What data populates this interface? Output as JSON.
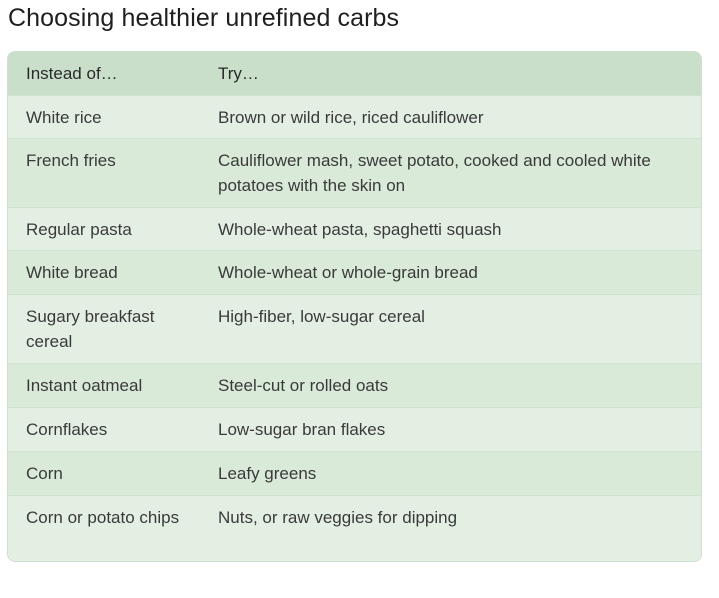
{
  "title": "Choosing healthier unrefined carbs",
  "table": {
    "headers": [
      "Instead of…",
      "Try…"
    ],
    "rows": [
      {
        "instead": "White rice",
        "try": "Brown or wild rice, riced cauliflower"
      },
      {
        "instead": "French fries",
        "try": "Cauliflower mash, sweet potato, cooked and cooled white potatoes with the skin on"
      },
      {
        "instead": "Regular pasta",
        "try": "Whole-wheat pasta, spaghetti squash"
      },
      {
        "instead": "White bread",
        "try": "Whole-wheat or whole-grain bread"
      },
      {
        "instead": "Sugary breakfast cereal",
        "try": "High-fiber, low-sugar cereal"
      },
      {
        "instead": "Instant oatmeal",
        "try": "Steel-cut or rolled oats"
      },
      {
        "instead": "Cornflakes",
        "try": "Low-sugar bran flakes"
      },
      {
        "instead": "Corn",
        "try": "Leafy greens"
      },
      {
        "instead": "Corn or potato chips",
        "try": "Nuts, or raw veggies for dipping"
      }
    ]
  },
  "colors": {
    "header_bg": "#c9dfc9",
    "row_light": "#e4efe4",
    "row_dark": "#d9ead9"
  }
}
